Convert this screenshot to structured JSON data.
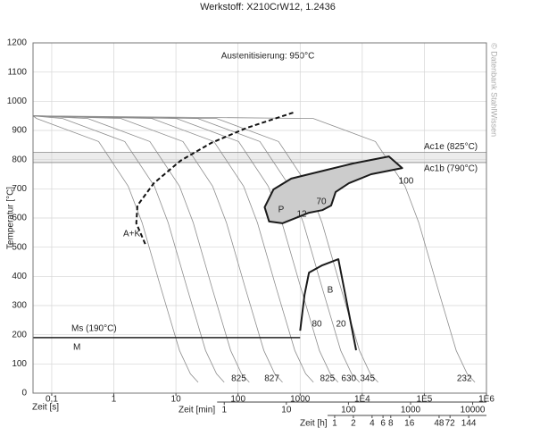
{
  "chart_data": {
    "type": "line",
    "title": "Werkstoff: X210CrW12, 1.2436",
    "ylabel": "Temperatur [°C]",
    "xlabel": "Zeit [s]",
    "xscale": "log",
    "xlim": [
      0.05,
      1000000
    ],
    "xticks": [
      {
        "value": 0.1,
        "label": "0,1"
      },
      1,
      10,
      100,
      1000,
      {
        "value": 10000,
        "label": "1E4"
      },
      {
        "value": 100000,
        "label": "1E5"
      },
      {
        "value": 1000000,
        "label": "1E6"
      }
    ],
    "ylim": [
      0,
      1200
    ],
    "yticks": [
      0,
      100,
      200,
      300,
      400,
      500,
      600,
      700,
      800,
      900,
      1000,
      1100,
      1200
    ],
    "grid": true,
    "x2": {
      "label": "Zeit [min]",
      "lim": [
        0.000833,
        16667
      ],
      "ticks": [
        1,
        10,
        100,
        1000,
        10000
      ]
    },
    "x3": {
      "label": "Zeit [h]",
      "lim": [
        1.39e-05,
        277.8
      ],
      "ticks": [
        1,
        2,
        4,
        6,
        8,
        16,
        48,
        72,
        144
      ]
    },
    "curve_color": "#8c8c8c",
    "cooling_curves": [
      {
        "label": null,
        "x": [
          0.05,
          0.057,
          0.57,
          1.7,
          2.85,
          5.7,
          11.4,
          17.1,
          22.8
        ],
        "y": [
          950,
          941,
          862,
          709,
          584,
          362,
          146,
          66,
          37
        ]
      },
      {
        "label": null,
        "x": [
          0.05,
          0.15,
          1.5,
          4.5,
          7.5,
          15,
          30,
          45,
          60
        ],
        "y": [
          950,
          941,
          862,
          709,
          584,
          362,
          146,
          66,
          37
        ]
      },
      {
        "label": "825",
        "x": [
          0.05,
          0.38,
          3.8,
          11.4,
          19,
          38,
          76,
          114,
          152
        ],
        "y": [
          950,
          941,
          862,
          709,
          584,
          362,
          146,
          66,
          37
        ]
      },
      {
        "label": "827",
        "x": [
          0.05,
          1.3,
          13,
          39,
          65,
          130,
          260,
          390,
          520
        ],
        "y": [
          950,
          941,
          862,
          709,
          584,
          362,
          146,
          66,
          37
        ]
      },
      {
        "label": null,
        "x": [
          0.05,
          4.1,
          41,
          123,
          205,
          410,
          820,
          1230,
          1640
        ],
        "y": [
          950,
          941,
          862,
          709,
          584,
          362,
          146,
          66,
          37
        ]
      },
      {
        "label": "825",
        "x": [
          0.05,
          10.2,
          102,
          306,
          510,
          1020,
          2040,
          3060,
          4080
        ],
        "y": [
          950,
          941,
          862,
          709,
          584,
          362,
          146,
          66,
          37
        ]
      },
      {
        "label": "630",
        "x": [
          0.05,
          22.5,
          225,
          675,
          1125,
          2250,
          4500,
          6750,
          9000
        ],
        "y": [
          950,
          941,
          862,
          709,
          584,
          362,
          146,
          66,
          37
        ]
      },
      {
        "label": "345",
        "x": [
          0.05,
          45,
          450,
          1350,
          2250,
          4500,
          9000,
          13500,
          18000
        ],
        "y": [
          950,
          941,
          862,
          709,
          584,
          362,
          146,
          66,
          37
        ]
      },
      {
        "label": "232",
        "x": [
          0.05,
          1630,
          16300,
          48900,
          81500,
          163000,
          326000,
          489000,
          652000
        ],
        "y": [
          950,
          941,
          862,
          709,
          584,
          362,
          146,
          66,
          37
        ]
      }
    ],
    "carbide_start": {
      "label": "A+K",
      "x": [
        3.2,
        2.3,
        2.4,
        4.4,
        11.8,
        37,
        139,
        848
      ],
      "y": [
        511,
        582,
        643,
        719,
        796,
        857,
        909,
        964
      ]
    },
    "pearlite": {
      "label": "P",
      "color": "#cccccc",
      "x": [
        268,
        372,
        720,
        2683,
        7197,
        26827,
        43940,
        13895,
        6105,
        3728,
        3162,
        2276,
        1389,
        518,
        316
      ],
      "y": [
        637,
        698,
        735,
        765,
        787,
        811,
        771,
        750,
        719,
        689,
        643,
        627,
        618,
        582,
        588
      ]
    },
    "bainite": {
      "label": "B",
      "x": [
        1000,
        1177,
        1389,
        2276,
        4134,
        7962
      ],
      "y": [
        214,
        337,
        413,
        438,
        459,
        147
      ]
    },
    "ms": {
      "label": "Ms (190°C)",
      "value": 190,
      "x_end": 1000
    },
    "martensite_label": "M",
    "critical": [
      {
        "label": "Ac1e (825°C)",
        "value": 825
      },
      {
        "label": "Ac1b (790°C)",
        "value": 790
      }
    ],
    "austenitizing": "Austenitisierung: 950°C",
    "percents": [
      70,
      12,
      80,
      20,
      100
    ],
    "watermark": "© Datenbank StahlWissen"
  }
}
